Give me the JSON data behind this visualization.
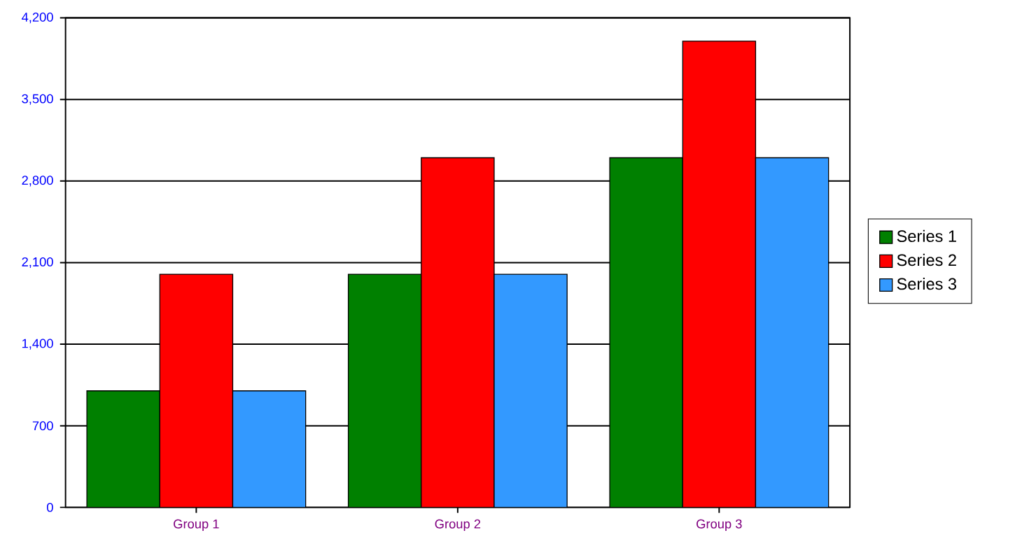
{
  "chart_data": {
    "type": "bar",
    "categories": [
      "Group 1",
      "Group 2",
      "Group 3"
    ],
    "series": [
      {
        "name": "Series 1",
        "color": "#008000",
        "values": [
          1000,
          2000,
          3000
        ]
      },
      {
        "name": "Series 2",
        "color": "#ff0000",
        "values": [
          2000,
          3000,
          4000
        ]
      },
      {
        "name": "Series 3",
        "color": "#3399ff",
        "values": [
          1000,
          2000,
          3000
        ]
      }
    ],
    "ylim": [
      0,
      4200
    ],
    "yticks": [
      0,
      700,
      {
        "value": 1400,
        "label": "1,400"
      },
      {
        "value": 2100,
        "label": "2,100"
      },
      {
        "value": 2800,
        "label": "2,800"
      },
      {
        "value": 3500,
        "label": "3,500"
      },
      {
        "value": 4200,
        "label": "4,200"
      }
    ],
    "grid": "y",
    "legend": "right"
  }
}
